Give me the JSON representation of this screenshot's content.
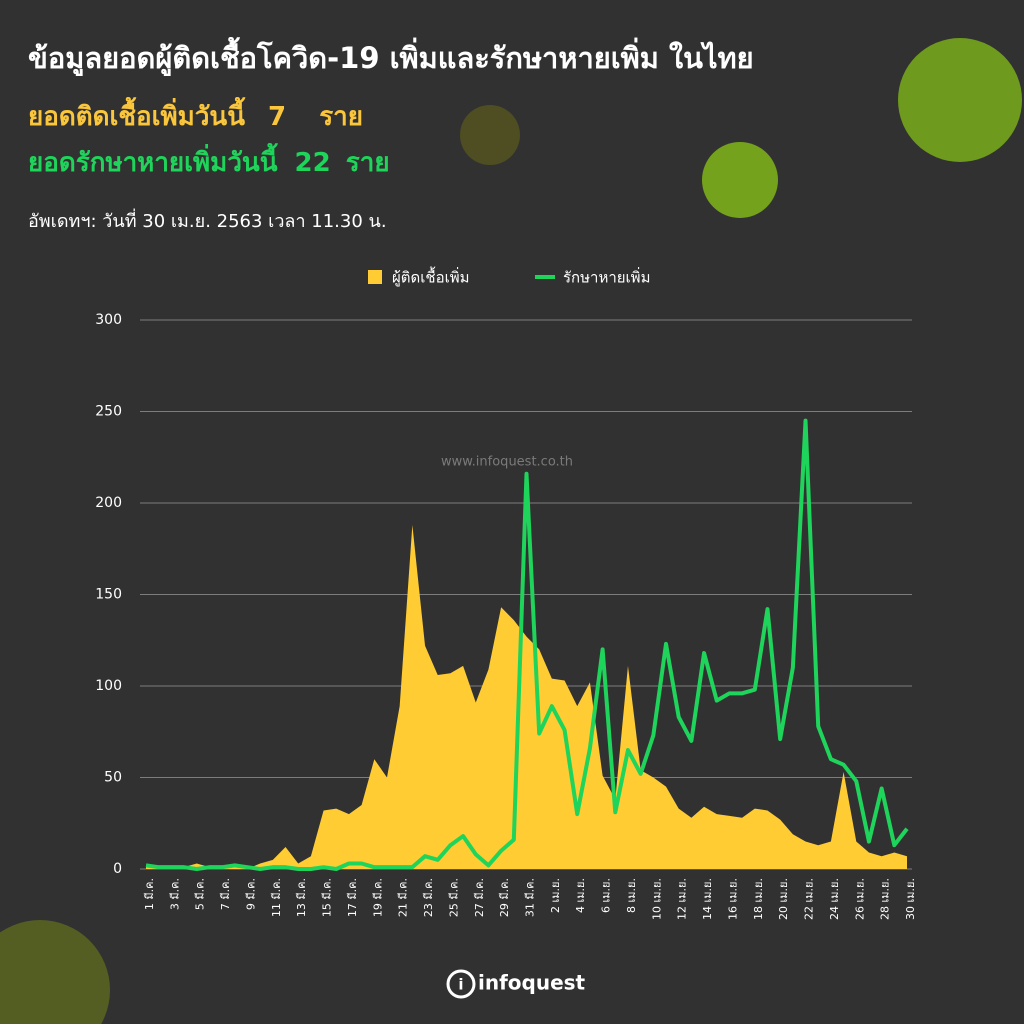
{
  "chart_data": {
    "type": "area_line",
    "title": "ข้อมูลยอดผู้ติดเชื้อโควิด-19 เพิ่มและรักษาหายเพิ่ม ในไทย",
    "new_cases_today": {
      "label": "ยอดติดเชื้อเพิ่มวันนี้",
      "value": 7,
      "unit": "ราย"
    },
    "recovered_today": {
      "label": "ยอดรักษาหายเพิ่มวันนี้",
      "value": 22,
      "unit": "ราย"
    },
    "updated": "อัพเดทฯ: วันที่ 30 เม.ย. 2563 เวลา 11.30 น.",
    "watermark": "www.infoquest.co.th",
    "logo": "infoquest",
    "categories": [
      "1 มี.ค.",
      null,
      "3 มี.ค.",
      null,
      "5 มี.ค.",
      null,
      "7 มี.ค.",
      null,
      "9 มี.ค.",
      null,
      "11 มี.ค.",
      null,
      "13 มี.ค.",
      null,
      "15 มี.ค.",
      null,
      "17 มี.ค.",
      null,
      "19 มี.ค.",
      null,
      "21 มี.ค.",
      null,
      "23 มี.ค.",
      null,
      "25 มี.ค.",
      null,
      "27 มี.ค.",
      null,
      "29 มี.ค.",
      null,
      "31 มี.ค.",
      null,
      "2 เม.ย.",
      null,
      "4 เม.ย.",
      null,
      "6 เม.ย.",
      null,
      "8 เม.ย.",
      null,
      "10 เม.ย.",
      null,
      "12 เม.ย.",
      null,
      "14 เม.ย.",
      null,
      "16 เม.ย.",
      null,
      "18 เม.ย.",
      null,
      "20 เม.ย.",
      null,
      "22 เม.ย.",
      null,
      "24 เม.ย.",
      null,
      "26 เม.ย.",
      null,
      "28 เม.ย.",
      null,
      "30 เม.ย."
    ],
    "series": [
      {
        "name": "ผู้ติดเชื้อเพิ่ม",
        "kind": "area",
        "color": "#ffcc33",
        "values": [
          1,
          1,
          0,
          1,
          3,
          1,
          0,
          1,
          0,
          3,
          5,
          12,
          3,
          7,
          32,
          33,
          30,
          35,
          60,
          50,
          89,
          188,
          122,
          106,
          107,
          111,
          91,
          109,
          143,
          136,
          127,
          120,
          104,
          103,
          89,
          102,
          51,
          38,
          111,
          54,
          50,
          45,
          33,
          28,
          34,
          30,
          29,
          28,
          33,
          32,
          27,
          19,
          15,
          13,
          15,
          53,
          15,
          9,
          7,
          9,
          7
        ]
      },
      {
        "name": "รักษาหายเพิ่ม",
        "kind": "line",
        "color": "#1ed45a",
        "values": [
          2,
          1,
          1,
          1,
          0,
          1,
          1,
          2,
          1,
          0,
          1,
          1,
          0,
          0,
          1,
          0,
          3,
          3,
          1,
          1,
          1,
          1,
          7,
          5,
          13,
          18,
          8,
          2,
          10,
          16,
          216,
          74,
          89,
          76,
          30,
          66,
          120,
          31,
          65,
          52,
          73,
          123,
          83,
          70,
          118,
          92,
          96,
          96,
          98,
          142,
          71,
          110,
          245,
          78,
          60,
          57,
          48,
          15,
          44,
          13,
          22
        ]
      }
    ],
    "ylim": [
      0,
      300
    ],
    "yticks": [
      0,
      50,
      100,
      150,
      200,
      250,
      300
    ],
    "grid": true
  }
}
